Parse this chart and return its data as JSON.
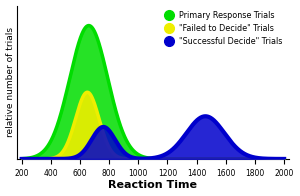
{
  "x_min": 200,
  "x_max": 2000,
  "xlabel": "Reaction Time",
  "ylabel": "relative number of trials",
  "xticks": [
    200,
    400,
    600,
    800,
    1000,
    1200,
    1400,
    1600,
    1800,
    2000
  ],
  "legend": [
    {
      "label": "Primary Response Trials",
      "color": "#00dd00"
    },
    {
      "label": "\"Failed to Decide\" Trials",
      "color": "#eeee00"
    },
    {
      "label": "\"Successful Decide\" Trials",
      "color": "#0000cc"
    }
  ],
  "green": {
    "color": "#00dd00",
    "linewidth": 2.5,
    "peak": 660,
    "sigma": 130,
    "amplitude": 1.0
  },
  "yellow": {
    "color": "#eeee00",
    "linewidth": 2.5,
    "peak": 650,
    "sigma": 80,
    "amplitude": 0.5
  },
  "blue": {
    "color": "#0000cc",
    "linewidth": 3.0,
    "peak1": 760,
    "sigma1": 80,
    "amplitude1": 0.24,
    "peak2": 1460,
    "sigma2": 130,
    "amplitude2": 0.32
  },
  "background_color": "#ffffff",
  "fig_width": 3.0,
  "fig_height": 1.96,
  "dpi": 100
}
